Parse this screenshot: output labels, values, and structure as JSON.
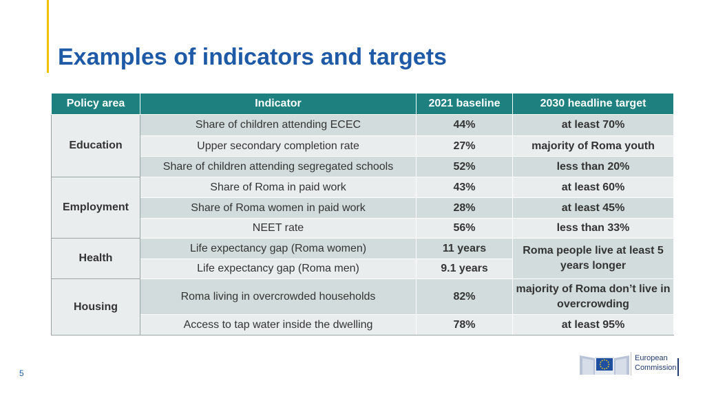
{
  "title": "Examples of indicators and targets",
  "page_number": "5",
  "logo": {
    "line1": "European",
    "line2": "Commission"
  },
  "table": {
    "headers": [
      "Policy area",
      "Indicator",
      "2021 baseline",
      "2030 headline target"
    ],
    "areas": [
      "Education",
      "Employment",
      "Health",
      "Housing"
    ],
    "rows": [
      {
        "indicator": "Share of children attending ECEC",
        "baseline": "44%",
        "target": "at least 70%"
      },
      {
        "indicator": "Upper secondary completion rate",
        "baseline": "27%",
        "target": "majority of Roma youth"
      },
      {
        "indicator": "Share of children attending segregated schools",
        "baseline": "52%",
        "target": "less than 20%"
      },
      {
        "indicator": "Share of Roma in paid work",
        "baseline": "43%",
        "target": "at least 60%"
      },
      {
        "indicator": "Share of Roma women in paid work",
        "baseline": "28%",
        "target": "at least 45%"
      },
      {
        "indicator": "NEET rate",
        "baseline": "56%",
        "target": "less than 33%"
      },
      {
        "indicator": "Life expectancy gap (Roma women)",
        "baseline": "11 years",
        "target": "Roma people live at least 5 years longer"
      },
      {
        "indicator": "Life expectancy gap (Roma men)",
        "baseline": "9.1 years"
      },
      {
        "indicator": "Roma living in overcrowded households",
        "baseline": "82%",
        "target": "majority of Roma don’t live in overcrowding"
      },
      {
        "indicator": "Access to tap water inside the dwelling",
        "baseline": "78%",
        "target": "at least 95%"
      }
    ]
  },
  "colors": {
    "title": "#1f5aa6",
    "header_bg": "#1f8080",
    "row_a": "#d3dcdc",
    "row_b": "#e9eded",
    "accent": "#f2c200"
  }
}
